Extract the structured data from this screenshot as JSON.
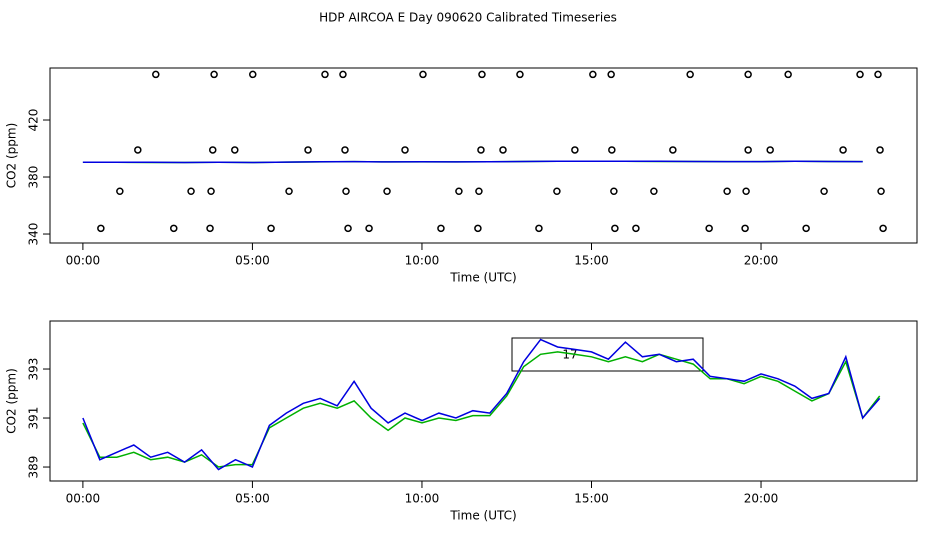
{
  "chart_data": [
    {
      "type": "line",
      "title": "HDP AIRCOA E  Day 090620  Calibrated Timeseries",
      "x_label": "Time (UTC)",
      "y_label": "CO2 (ppm)",
      "x": [
        0,
        1,
        2,
        3,
        4,
        5,
        6,
        7,
        8,
        9,
        10,
        11,
        12,
        13,
        14,
        15,
        16,
        17,
        18,
        19,
        20,
        21,
        22,
        23
      ],
      "series": [
        {
          "color": "#00b000",
          "values": [
            390.3,
            390.3,
            390.2,
            390.2,
            390.3,
            390.2,
            390.5,
            390.6,
            390.8,
            390.6,
            390.6,
            390.6,
            390.7,
            390.9,
            391.0,
            391.0,
            391.0,
            390.9,
            390.9,
            390.8,
            390.8,
            391.0,
            390.9,
            390.8
          ]
        },
        {
          "color": "#0000e0",
          "values": [
            390.4,
            390.3,
            390.3,
            390.2,
            390.3,
            390.2,
            390.5,
            390.7,
            390.8,
            390.6,
            390.7,
            390.6,
            390.7,
            390.9,
            391.0,
            391.1,
            391.0,
            391.0,
            390.9,
            390.8,
            390.8,
            391.0,
            390.9,
            390.8
          ]
        },
        {
          "type": "scatter",
          "color": "#000000",
          "x": [
            2.15,
            3.87,
            5.01,
            7.14,
            7.67,
            10.03,
            11.77,
            12.89,
            15.04,
            15.58,
            17.91,
            19.62,
            20.8,
            22.92,
            23.45,
            1.62,
            3.83,
            4.48,
            6.64,
            7.73,
            9.5,
            11.74,
            12.39,
            14.51,
            15.6,
            17.4,
            19.62,
            20.27,
            22.42,
            23.51,
            1.09,
            3.19,
            3.78,
            6.08,
            7.76,
            8.97,
            11.09,
            11.68,
            13.98,
            15.66,
            16.84,
            19.0,
            19.56,
            21.86,
            23.54,
            0.53,
            2.68,
            3.75,
            5.55,
            7.82,
            8.44,
            10.56,
            11.65,
            13.45,
            15.69,
            16.31,
            18.47,
            19.53,
            21.33,
            23.6
          ],
          "values": [
            452,
            452,
            452,
            452,
            452,
            452,
            452,
            452,
            452,
            452,
            452,
            452,
            452,
            452,
            452,
            399,
            399,
            399,
            399,
            399,
            399,
            399,
            399,
            399,
            399,
            399,
            399,
            399,
            399,
            399,
            370,
            370,
            370,
            370,
            370,
            370,
            370,
            370,
            370,
            370,
            370,
            370,
            370,
            370,
            370,
            344,
            344,
            344,
            344,
            344,
            344,
            344,
            344,
            344,
            344,
            344,
            344,
            344,
            344,
            344
          ]
        }
      ],
      "xlim": [
        -0.97,
        24.6
      ],
      "ylim": [
        333.7,
        456.5
      ],
      "xticks": [
        {
          "value": 0,
          "label": "00:00"
        },
        {
          "value": 5,
          "label": "05:00"
        },
        {
          "value": 10,
          "label": "10:00"
        },
        {
          "value": 15,
          "label": "15:00"
        },
        {
          "value": 20,
          "label": "20:00"
        }
      ],
      "yticks": [
        340,
        380,
        420
      ]
    },
    {
      "type": "line",
      "x_label": "Time (UTC)",
      "y_label": "CO2 (ppm)",
      "annotations": [
        "17"
      ],
      "x": [
        0,
        0.5,
        1,
        1.5,
        2,
        2.5,
        3,
        3.5,
        4,
        4.5,
        5,
        5.5,
        6,
        6.5,
        7,
        7.5,
        8,
        8.5,
        9,
        9.5,
        10,
        10.5,
        11,
        11.5,
        12,
        12.5,
        13,
        13.5,
        14,
        14.5,
        15,
        15.5,
        16,
        16.5,
        17,
        17.5,
        18,
        18.5,
        19,
        19.5,
        20,
        20.5,
        21,
        21.5,
        22,
        22.5,
        23,
        23.5
      ],
      "series": [
        {
          "color": "#00b000",
          "values": [
            390.8,
            389.4,
            389.4,
            389.6,
            389.3,
            389.4,
            389.2,
            389.5,
            389.0,
            389.1,
            389.1,
            390.6,
            391.0,
            391.4,
            391.6,
            391.4,
            391.7,
            391.0,
            390.5,
            391.0,
            390.8,
            391.0,
            390.9,
            391.1,
            391.1,
            391.9,
            393.1,
            393.6,
            393.7,
            393.6,
            393.5,
            393.3,
            393.5,
            393.3,
            393.6,
            393.4,
            393.2,
            392.6,
            392.6,
            392.4,
            392.7,
            392.5,
            392.1,
            391.7,
            392.0,
            393.3,
            391.0,
            391.9
          ]
        },
        {
          "color": "#0000e0",
          "values": [
            391.0,
            389.3,
            389.6,
            389.9,
            389.4,
            389.6,
            389.2,
            389.7,
            388.9,
            389.3,
            389.0,
            390.7,
            391.2,
            391.6,
            391.8,
            391.5,
            392.5,
            391.4,
            390.8,
            391.2,
            390.9,
            391.2,
            391.0,
            391.3,
            391.2,
            392.0,
            393.3,
            394.2,
            393.9,
            393.8,
            393.7,
            393.4,
            394.1,
            393.5,
            393.6,
            393.3,
            393.4,
            392.7,
            392.6,
            392.5,
            392.8,
            392.6,
            392.3,
            391.8,
            392.0,
            393.5,
            391.0,
            391.8
          ]
        }
      ],
      "xlim": [
        -0.97,
        24.6
      ],
      "ylim": [
        388.43,
        394.96
      ],
      "xticks": [
        {
          "value": 0,
          "label": "00:00"
        },
        {
          "value": 5,
          "label": "05:00"
        },
        {
          "value": 10,
          "label": "10:00"
        },
        {
          "value": 15,
          "label": "15:00"
        },
        {
          "value": 20,
          "label": "20:00"
        }
      ],
      "yticks": [
        389,
        391,
        393
      ]
    }
  ]
}
